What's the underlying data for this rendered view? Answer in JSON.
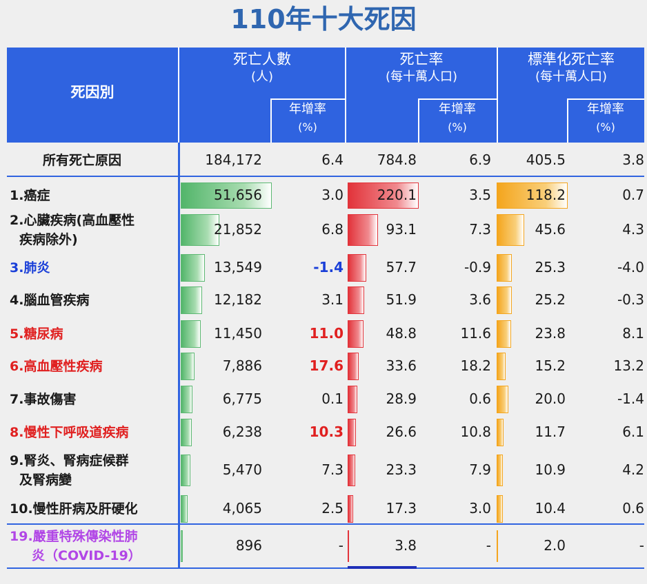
{
  "title": "110年十大死因",
  "header": {
    "cause": "死因別",
    "deaths": "死亡人數",
    "deaths_unit": "(人)",
    "rate": "死亡率",
    "rate_unit": "(每十萬人口)",
    "std_rate": "標準化死亡率",
    "std_rate_unit": "(每十萬人口)",
    "growth": "年增率",
    "pct": "(%)"
  },
  "chart_data": {
    "type": "table",
    "columns": [
      "死因別",
      "死亡人數(人)",
      "年增率(%)",
      "死亡率(每十萬人口)",
      "年增率(%)",
      "標準化死亡率(每十萬人口)",
      "年增率(%)"
    ],
    "rows": [
      {
        "label": "所有死亡原因",
        "deaths": "184,172",
        "d_g": "6.4",
        "rate": "784.8",
        "r_g": "6.9",
        "std": "405.5",
        "s_g": "3.8",
        "deaths_v": 184172,
        "rate_v": 784.8,
        "std_v": 405.5,
        "color": "#1a1a1a"
      },
      {
        "label": "1.癌症",
        "deaths": "51,656",
        "d_g": "3.0",
        "rate": "220.1",
        "r_g": "3.5",
        "std": "118.2",
        "s_g": "0.7",
        "deaths_v": 51656,
        "rate_v": 220.1,
        "std_v": 118.2,
        "color": "#1a1a1a"
      },
      {
        "label": "2.心臟疾病(高血壓性",
        "label2": "疾病除外)",
        "deaths": "21,852",
        "d_g": "6.8",
        "rate": "93.1",
        "r_g": "7.3",
        "std": "45.6",
        "s_g": "4.3",
        "deaths_v": 21852,
        "rate_v": 93.1,
        "std_v": 45.6,
        "color": "#1a1a1a"
      },
      {
        "label": "3.肺炎",
        "deaths": "13,549",
        "d_g": "-1.4",
        "rate": "57.7",
        "r_g": "-0.9",
        "std": "25.3",
        "s_g": "-4.0",
        "deaths_v": 13549,
        "rate_v": 57.7,
        "std_v": 25.3,
        "color": "#1a3fd8",
        "dg_color": "#1a3fd8"
      },
      {
        "label": "4.腦血管疾病",
        "deaths": "12,182",
        "d_g": "3.1",
        "rate": "51.9",
        "r_g": "3.6",
        "std": "25.2",
        "s_g": "-0.3",
        "deaths_v": 12182,
        "rate_v": 51.9,
        "std_v": 25.2,
        "color": "#1a1a1a"
      },
      {
        "label": "5.糖尿病",
        "deaths": "11,450",
        "d_g": "11.0",
        "rate": "48.8",
        "r_g": "11.6",
        "std": "23.8",
        "s_g": "8.1",
        "deaths_v": 11450,
        "rate_v": 48.8,
        "std_v": 23.8,
        "color": "#e02020",
        "dg_color": "#e02020"
      },
      {
        "label": "6.高血壓性疾病",
        "deaths": "7,886",
        "d_g": "17.6",
        "rate": "33.6",
        "r_g": "18.2",
        "std": "15.2",
        "s_g": "13.2",
        "deaths_v": 7886,
        "rate_v": 33.6,
        "std_v": 15.2,
        "color": "#e02020",
        "dg_color": "#e02020"
      },
      {
        "label": "7.事故傷害",
        "deaths": "6,775",
        "d_g": "0.1",
        "rate": "28.9",
        "r_g": "0.6",
        "std": "20.0",
        "s_g": "-1.4",
        "deaths_v": 6775,
        "rate_v": 28.9,
        "std_v": 20.0,
        "color": "#1a1a1a"
      },
      {
        "label": "8.慢性下呼吸道疾病",
        "deaths": "6,238",
        "d_g": "10.3",
        "rate": "26.6",
        "r_g": "10.8",
        "std": "11.7",
        "s_g": "6.1",
        "deaths_v": 6238,
        "rate_v": 26.6,
        "std_v": 11.7,
        "color": "#e02020",
        "dg_color": "#e02020"
      },
      {
        "label": "9.腎炎、腎病症候群",
        "label2": "及腎病變",
        "deaths": "5,470",
        "d_g": "7.3",
        "rate": "23.3",
        "r_g": "7.9",
        "std": "10.9",
        "s_g": "4.2",
        "deaths_v": 5470,
        "rate_v": 23.3,
        "std_v": 10.9,
        "color": "#1a1a1a"
      },
      {
        "label": "10.慢性肝病及肝硬化",
        "deaths": "4,065",
        "d_g": "2.5",
        "rate": "17.3",
        "r_g": "3.0",
        "std": "10.4",
        "s_g": "0.6",
        "deaths_v": 4065,
        "rate_v": 17.3,
        "std_v": 10.4,
        "color": "#1a1a1a"
      },
      {
        "label": "19.嚴重特殊傳染性肺",
        "label2": "炎（COVID-19）",
        "deaths": "896",
        "d_g": "-",
        "rate": "3.8",
        "r_g": "-",
        "std": "2.0",
        "s_g": "-",
        "deaths_v": 896,
        "rate_v": 3.8,
        "std_v": 2.0,
        "color": "#b146e6"
      }
    ]
  }
}
